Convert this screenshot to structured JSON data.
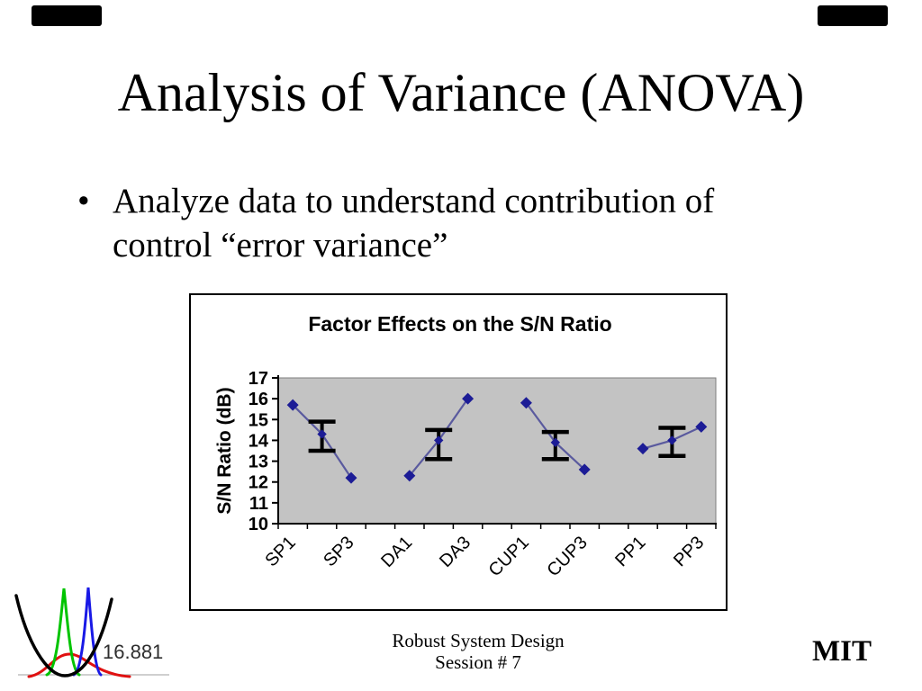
{
  "slide": {
    "title": "Analysis of Variance (ANOVA)",
    "bullet": {
      "marker": "•",
      "line1": "Analyze data to understand contribution of",
      "line2": "control “error variance”"
    }
  },
  "chart_data": {
    "type": "line",
    "title": "Factor Effects on the S/N Ratio",
    "xlabel": "",
    "ylabel": "S/N Ratio (dB)",
    "ylim": [
      10,
      17
    ],
    "yticks": [
      17,
      16,
      15,
      14,
      13,
      12,
      11,
      10
    ],
    "x_labels": [
      "SP1",
      "SP3",
      "DA1",
      "DA3",
      "CUP1",
      "CUP3",
      "PP1",
      "PP3"
    ],
    "grid": "off",
    "legend": "none",
    "groups": [
      {
        "name": "SP",
        "values": {
          "level1": 15.7,
          "mean": 14.3,
          "level3": 12.2
        },
        "error_bar": {
          "low": 13.5,
          "high": 14.9
        }
      },
      {
        "name": "DA",
        "values": {
          "level1": 12.3,
          "mean": 14.0,
          "level3": 16.0
        },
        "error_bar": {
          "low": 13.1,
          "high": 14.5
        }
      },
      {
        "name": "CUP",
        "values": {
          "level1": 15.8,
          "mean": 13.9,
          "level3": 12.6
        },
        "error_bar": {
          "low": 13.1,
          "high": 14.4
        }
      },
      {
        "name": "PP",
        "values": {
          "level1": 13.6,
          "mean": 14.0,
          "level3": 14.65
        },
        "error_bar": {
          "low": 13.25,
          "high": 14.6
        }
      }
    ],
    "colors": {
      "plot_bg": "#c3c3c3",
      "plot_border": "#7e7e7e",
      "line": "#5a5a9e",
      "marker": "#1c1c96",
      "error_bar": "#000000",
      "axis": "#000000"
    }
  },
  "footer": {
    "course_number": "16.881",
    "center_line1": "Robust System Design",
    "center_line2": "Session # 7",
    "right": "MIT"
  }
}
